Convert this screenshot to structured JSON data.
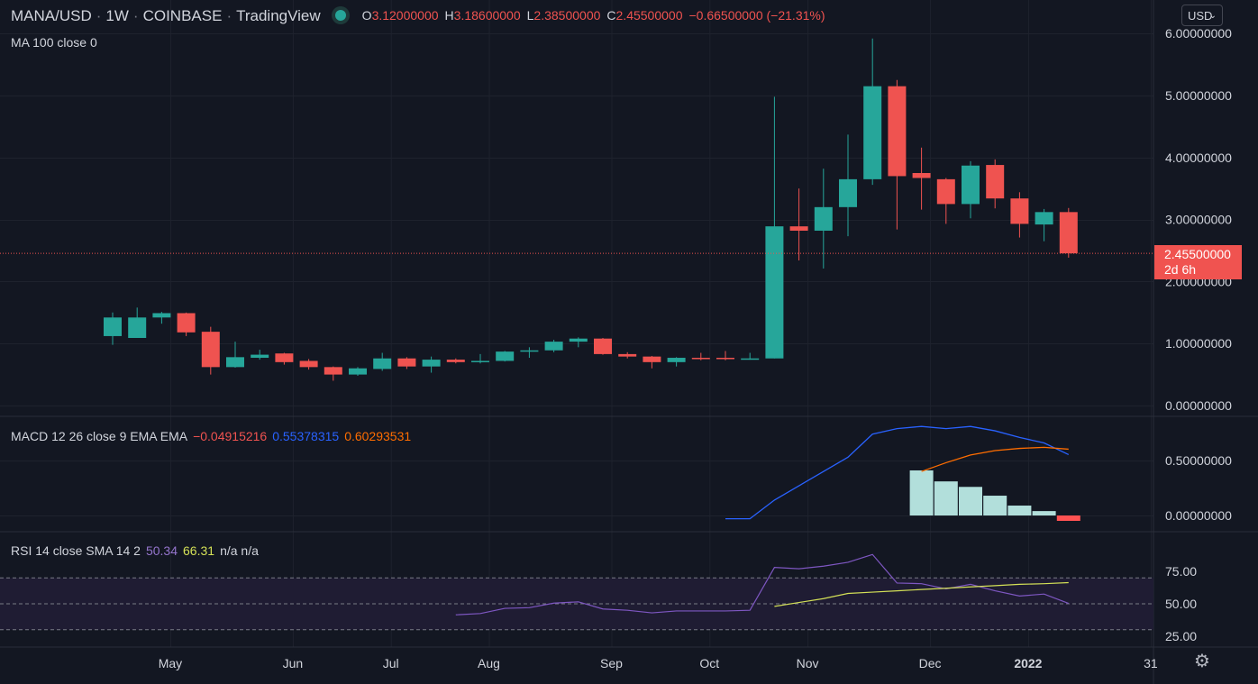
{
  "header": {
    "symbol": "MANA/USD",
    "interval": "1W",
    "exchange": "COINBASE",
    "source": "TradingView",
    "ohlc": {
      "o_label": "O",
      "o": "3.12000000",
      "h_label": "H",
      "h": "3.18600000",
      "l_label": "L",
      "l": "2.38500000",
      "c_label": "C",
      "c": "2.45500000",
      "change": "−0.66500000 (−21.31%)"
    }
  },
  "currency_button": "USD",
  "ma_legend": "MA 100 close 0",
  "macd_legend": {
    "label": "MACD 12 26 close 9 EMA EMA",
    "hist": "−0.04915216",
    "macd": "0.55378315",
    "signal": "0.60293531"
  },
  "rsi_legend": {
    "label": "RSI 14 close SMA 14 2",
    "rsi": "50.34",
    "sma": "66.31",
    "extra": "n/a n/a"
  },
  "last_price_tag": {
    "price": "2.45500000",
    "countdown": "2d 6h"
  },
  "colors": {
    "up": "#26a69a",
    "down": "#ef5350",
    "macd_line": "#2962ff",
    "signal_line": "#ff6d00",
    "hist_up": "#b2dfdb",
    "hist_down": "#ff5252",
    "rsi_line": "#7e57c2",
    "rsi_sma": "#d4e157",
    "rsi_band": "#1f1c33"
  },
  "chart_data": {
    "type": "candlestick",
    "price_axis": {
      "ylim": [
        0,
        6
      ],
      "ticks": [
        0,
        1,
        2,
        3,
        4,
        5,
        6
      ],
      "tick_labels": [
        "0.00000000",
        "1.00000000",
        "2.00000000",
        "3.00000000",
        "4.00000000",
        "5.00000000",
        "6.00000000"
      ]
    },
    "x_axis": {
      "labels": [
        "May",
        "Jun",
        "Jul",
        "Aug",
        "Sep",
        "Oct",
        "Nov",
        "Dec",
        "2022",
        "31"
      ],
      "label_index": [
        2.35,
        7.35,
        11.35,
        15.35,
        20.35,
        24.35,
        28.35,
        33.35,
        37.35,
        42.35
      ]
    },
    "candles": [
      {
        "o": 1.12,
        "h": 1.5,
        "l": 0.98,
        "c": 1.42
      },
      {
        "o": 1.09,
        "h": 1.58,
        "l": 1.09,
        "c": 1.42
      },
      {
        "o": 1.42,
        "h": 1.51,
        "l": 1.32,
        "c": 1.49
      },
      {
        "o": 1.49,
        "h": 1.5,
        "l": 1.12,
        "c": 1.18
      },
      {
        "o": 1.19,
        "h": 1.27,
        "l": 0.5,
        "c": 0.62
      },
      {
        "o": 0.62,
        "h": 1.03,
        "l": 0.61,
        "c": 0.78
      },
      {
        "o": 0.77,
        "h": 0.9,
        "l": 0.74,
        "c": 0.82
      },
      {
        "o": 0.84,
        "h": 0.85,
        "l": 0.66,
        "c": 0.7
      },
      {
        "o": 0.72,
        "h": 0.75,
        "l": 0.58,
        "c": 0.62
      },
      {
        "o": 0.62,
        "h": 0.63,
        "l": 0.4,
        "c": 0.5
      },
      {
        "o": 0.5,
        "h": 0.62,
        "l": 0.48,
        "c": 0.6
      },
      {
        "o": 0.59,
        "h": 0.85,
        "l": 0.56,
        "c": 0.76
      },
      {
        "o": 0.76,
        "h": 0.78,
        "l": 0.59,
        "c": 0.63
      },
      {
        "o": 0.63,
        "h": 0.79,
        "l": 0.53,
        "c": 0.74
      },
      {
        "o": 0.74,
        "h": 0.76,
        "l": 0.68,
        "c": 0.7
      },
      {
        "o": 0.7,
        "h": 0.83,
        "l": 0.68,
        "c": 0.72
      },
      {
        "o": 0.72,
        "h": 0.88,
        "l": 0.71,
        "c": 0.87
      },
      {
        "o": 0.87,
        "h": 0.94,
        "l": 0.77,
        "c": 0.89
      },
      {
        "o": 0.89,
        "h": 1.06,
        "l": 0.86,
        "c": 1.03
      },
      {
        "o": 1.03,
        "h": 1.1,
        "l": 0.94,
        "c": 1.08
      },
      {
        "o": 1.08,
        "h": 1.09,
        "l": 0.82,
        "c": 0.83
      },
      {
        "o": 0.83,
        "h": 0.86,
        "l": 0.76,
        "c": 0.79
      },
      {
        "o": 0.79,
        "h": 0.8,
        "l": 0.6,
        "c": 0.7
      },
      {
        "o": 0.7,
        "h": 0.78,
        "l": 0.63,
        "c": 0.77
      },
      {
        "o": 0.77,
        "h": 0.85,
        "l": 0.73,
        "c": 0.76
      },
      {
        "o": 0.77,
        "h": 0.88,
        "l": 0.73,
        "c": 0.75
      },
      {
        "o": 0.75,
        "h": 0.85,
        "l": 0.74,
        "c": 0.76
      },
      {
        "o": 0.76,
        "h": 4.98,
        "l": 0.76,
        "c": 2.89
      },
      {
        "o": 2.89,
        "h": 3.5,
        "l": 2.34,
        "c": 2.82
      },
      {
        "o": 2.82,
        "h": 3.82,
        "l": 2.21,
        "c": 3.2
      },
      {
        "o": 3.2,
        "h": 4.37,
        "l": 2.73,
        "c": 3.65
      },
      {
        "o": 3.65,
        "h": 5.92,
        "l": 3.56,
        "c": 5.15
      },
      {
        "o": 5.15,
        "h": 5.25,
        "l": 2.84,
        "c": 3.7
      },
      {
        "o": 3.75,
        "h": 4.16,
        "l": 3.16,
        "c": 3.67
      },
      {
        "o": 3.65,
        "h": 3.67,
        "l": 2.93,
        "c": 3.25
      },
      {
        "o": 3.25,
        "h": 3.94,
        "l": 3.02,
        "c": 3.87
      },
      {
        "o": 3.88,
        "h": 3.97,
        "l": 3.18,
        "c": 3.34
      },
      {
        "o": 3.34,
        "h": 3.44,
        "l": 2.71,
        "c": 2.93
      },
      {
        "o": 2.92,
        "h": 3.17,
        "l": 2.65,
        "c": 3.12
      },
      {
        "o": 3.12,
        "h": 3.186,
        "l": 2.385,
        "c": 2.455
      }
    ],
    "last_price": 2.455,
    "macd": {
      "ylim": [
        -0.08,
        0.9
      ],
      "ticks": [
        0.0,
        0.5
      ],
      "tick_labels": [
        "0.00000000",
        "0.50000000"
      ],
      "macd_line": {
        "start_index": 25,
        "values": [
          -0.03,
          -0.03,
          0.14,
          0.27,
          0.4,
          0.53,
          0.74,
          0.79,
          0.81,
          0.79,
          0.81,
          0.77,
          0.71,
          0.66,
          0.55378315
        ]
      },
      "signal_line": {
        "start_index": 33,
        "values": [
          0.4,
          0.48,
          0.55,
          0.59,
          0.61,
          0.62,
          0.60293531
        ]
      },
      "histogram": {
        "start_index": 33,
        "values": [
          0.41,
          0.31,
          0.26,
          0.18,
          0.09,
          0.04,
          -0.04915216
        ]
      }
    },
    "rsi": {
      "ylim": [
        25,
        100
      ],
      "ticks": [
        25,
        50,
        75
      ],
      "tick_labels": [
        "25.00",
        "50.00",
        "75.00"
      ],
      "band": [
        30,
        70
      ],
      "rsi_line": {
        "start_index": 14,
        "values": [
          41.5,
          42.5,
          46.5,
          47,
          50.5,
          51.5,
          46,
          45,
          43,
          44.5,
          44.5,
          44.5,
          45,
          78,
          77,
          79,
          82,
          88,
          66,
          65.5,
          61.5,
          65,
          60,
          56,
          57.5,
          50.34
        ]
      },
      "sma_line": {
        "start_index": 27,
        "values": [
          48,
          51,
          54,
          58,
          59,
          60,
          61,
          62,
          63,
          64,
          65,
          65.5,
          66.31
        ]
      }
    }
  }
}
